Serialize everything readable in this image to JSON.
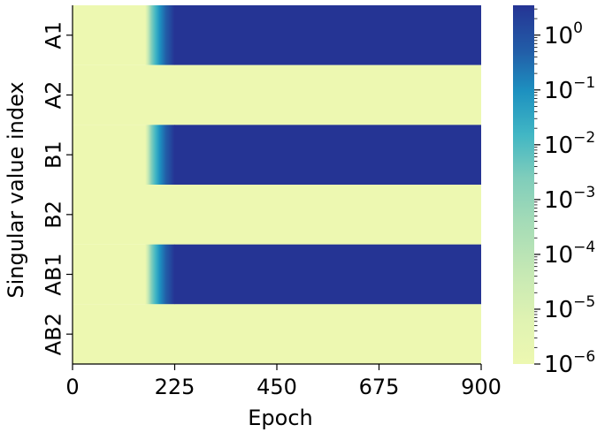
{
  "chart_data": {
    "type": "heatmap",
    "title": "",
    "xlabel": "Epoch",
    "ylabel": "Singular value index",
    "x_range": [
      0,
      900
    ],
    "x_ticks": [
      "0",
      "225",
      "450",
      "675",
      "900"
    ],
    "rows": [
      "A1",
      "A2",
      "B1",
      "B2",
      "AB1",
      "AB2"
    ],
    "grid": false,
    "colorscale": "YlGnBu",
    "color_scale_type": "log",
    "color_range": [
      1e-06,
      3.5
    ],
    "colorbar_ticks": [
      {
        "base": "10",
        "exp": "0"
      },
      {
        "base": "10",
        "exp": "−1"
      },
      {
        "base": "10",
        "exp": "−2"
      },
      {
        "base": "10",
        "exp": "−3"
      },
      {
        "base": "10",
        "exp": "−4"
      },
      {
        "base": "10",
        "exp": "−5"
      },
      {
        "base": "10",
        "exp": "−6"
      }
    ],
    "series": [
      {
        "row": "A1",
        "low": 1e-06,
        "high": 3.5,
        "rise_start_epoch": 160,
        "rise_end_epoch": 225
      },
      {
        "row": "A2",
        "low": 1e-06,
        "high": 1e-06,
        "rise_start_epoch": null,
        "rise_end_epoch": null
      },
      {
        "row": "B1",
        "low": 1e-06,
        "high": 3.5,
        "rise_start_epoch": 160,
        "rise_end_epoch": 225
      },
      {
        "row": "B2",
        "low": 1e-06,
        "high": 1e-06,
        "rise_start_epoch": null,
        "rise_end_epoch": null
      },
      {
        "row": "AB1",
        "low": 1e-06,
        "high": 3.5,
        "rise_start_epoch": 160,
        "rise_end_epoch": 225
      },
      {
        "row": "AB2",
        "low": 1e-06,
        "high": 1e-06,
        "rise_start_epoch": null,
        "rise_end_epoch": null
      }
    ]
  }
}
